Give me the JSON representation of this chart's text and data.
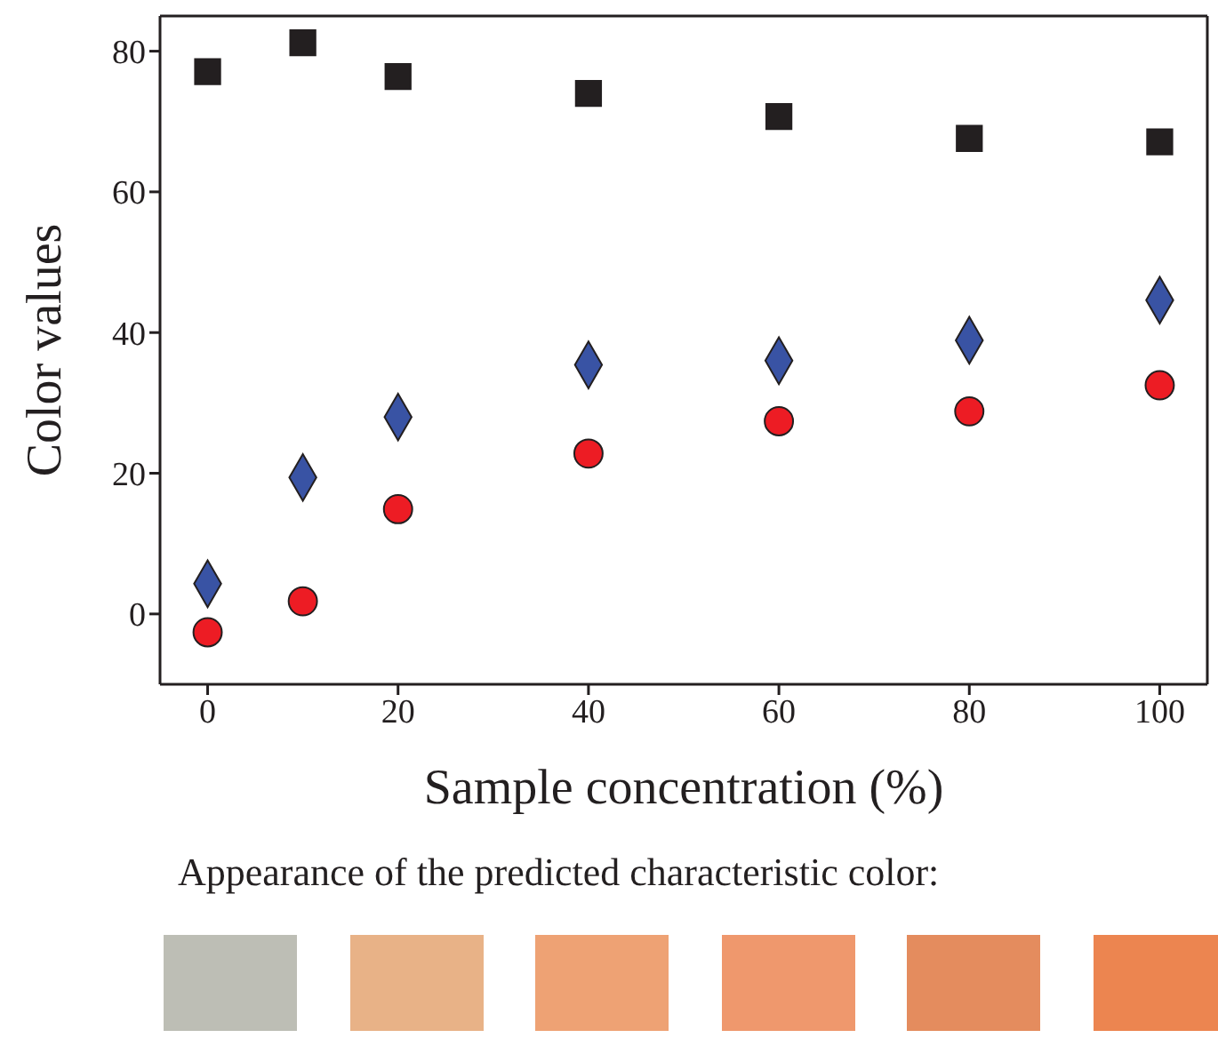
{
  "chart_data": {
    "type": "scatter",
    "xlabel": "Sample concentration (%)",
    "ylabel": "Color values",
    "x": [
      0,
      10,
      20,
      40,
      60,
      80,
      100
    ],
    "series": [
      {
        "color": "#231f20",
        "marker": "square",
        "values": [
          77.1,
          81.2,
          76.4,
          74.0,
          70.7,
          67.6,
          67.1
        ]
      },
      {
        "color": "#3953a4",
        "marker": "diamond",
        "values": [
          4.3,
          19.4,
          28.0,
          35.4,
          36.0,
          38.9,
          44.6
        ]
      },
      {
        "color": "#ed1c24",
        "marker": "circle",
        "values": [
          -2.6,
          1.8,
          14.9,
          22.8,
          27.4,
          28.8,
          32.5
        ]
      }
    ],
    "xlim": [
      -5,
      105
    ],
    "xticks": [
      0,
      20,
      40,
      60,
      80,
      100
    ],
    "ylim": [
      -10,
      85
    ],
    "yticks": [
      0,
      20,
      40,
      60,
      80
    ],
    "annotations": [
      "Appearance of the predicted characteristic color:"
    ]
  }
}
